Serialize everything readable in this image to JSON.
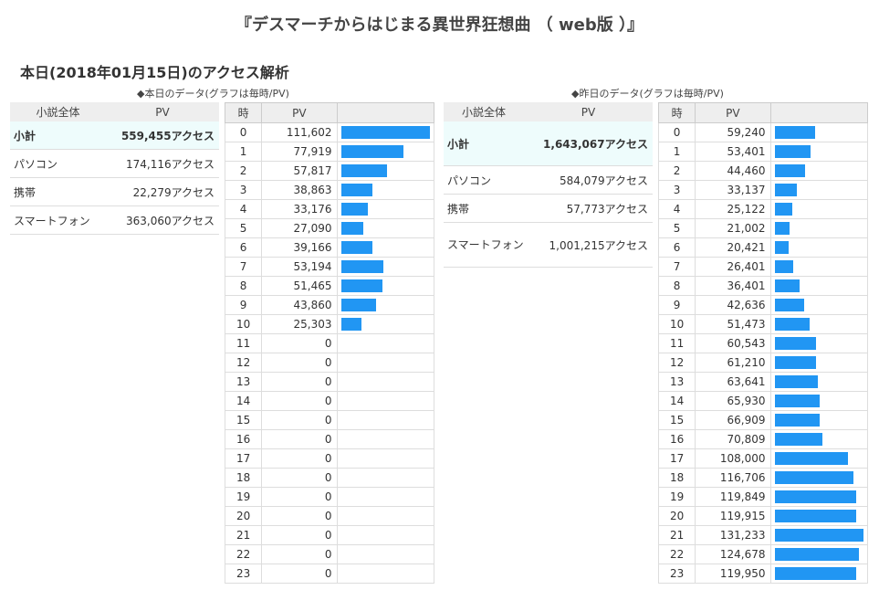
{
  "page_title": "『デスマーチからはじまる異世界狂想曲 （ web版 ）』",
  "section_title": "本日(2018年01月15日)のアクセス解析",
  "today": {
    "caption": "◆本日のデータ(グラフは毎時/PV)",
    "summary": {
      "headers": [
        "小説全体",
        "PV"
      ],
      "rows": [
        {
          "label": "小計",
          "value": "559,455アクセス"
        },
        {
          "label": "パソコン",
          "value": "174,116アクセス"
        },
        {
          "label": "携帯",
          "value": "22,279アクセス"
        },
        {
          "label": "スマートフォン",
          "value": "363,060アクセス"
        }
      ]
    },
    "hourly": {
      "headers": [
        "時",
        "PV"
      ],
      "hours": [
        "0",
        "1",
        "2",
        "3",
        "4",
        "5",
        "6",
        "7",
        "8",
        "9",
        "10",
        "11",
        "12",
        "13",
        "14",
        "15",
        "16",
        "17",
        "18",
        "19",
        "20",
        "21",
        "22",
        "23"
      ],
      "values": [
        "111,602",
        "77,919",
        "57,817",
        "38,863",
        "33,176",
        "27,090",
        "39,166",
        "53,194",
        "51,465",
        "43,860",
        "25,303",
        "0",
        "0",
        "0",
        "0",
        "0",
        "0",
        "0",
        "0",
        "0",
        "0",
        "0",
        "0",
        "0"
      ],
      "bar_values": [
        111602,
        77919,
        57817,
        38863,
        33176,
        27090,
        39166,
        53194,
        51465,
        43860,
        25303,
        0,
        0,
        0,
        0,
        0,
        0,
        0,
        0,
        0,
        0,
        0,
        0,
        0
      ],
      "bar_max": 111602
    }
  },
  "yesterday": {
    "caption": "◆昨日のデータ(グラフは毎時/PV)",
    "summary": {
      "headers": [
        "小説全体",
        "PV"
      ],
      "rows": [
        {
          "label": "小計",
          "value": "1,643,067アクセス"
        },
        {
          "label": "パソコン",
          "value": "584,079アクセス"
        },
        {
          "label": "携帯",
          "value": "57,773アクセス"
        },
        {
          "label": "スマートフォン",
          "value": "1,001,215アクセス"
        }
      ]
    },
    "hourly": {
      "headers": [
        "時",
        "PV"
      ],
      "hours": [
        "0",
        "1",
        "2",
        "3",
        "4",
        "5",
        "6",
        "7",
        "8",
        "9",
        "10",
        "11",
        "12",
        "13",
        "14",
        "15",
        "16",
        "17",
        "18",
        "19",
        "20",
        "21",
        "22",
        "23"
      ],
      "values": [
        "59,240",
        "53,401",
        "44,460",
        "33,137",
        "25,122",
        "21,002",
        "20,421",
        "26,401",
        "36,401",
        "42,636",
        "51,473",
        "60,543",
        "61,210",
        "63,641",
        "65,930",
        "66,909",
        "70,809",
        "108,000",
        "116,706",
        "119,849",
        "119,915",
        "131,233",
        "124,678",
        "119,950"
      ],
      "bar_values": [
        59240,
        53401,
        44460,
        33137,
        25122,
        21002,
        20421,
        26401,
        36401,
        42636,
        51473,
        60543,
        61210,
        63641,
        65930,
        66909,
        70809,
        108000,
        116706,
        119849,
        119915,
        131233,
        124678,
        119950
      ],
      "bar_max": 131233
    }
  },
  "colors": {
    "bar": "#2196f3",
    "header_bg": "#eeeeee",
    "subtotal_bg": "#eefcfc"
  }
}
